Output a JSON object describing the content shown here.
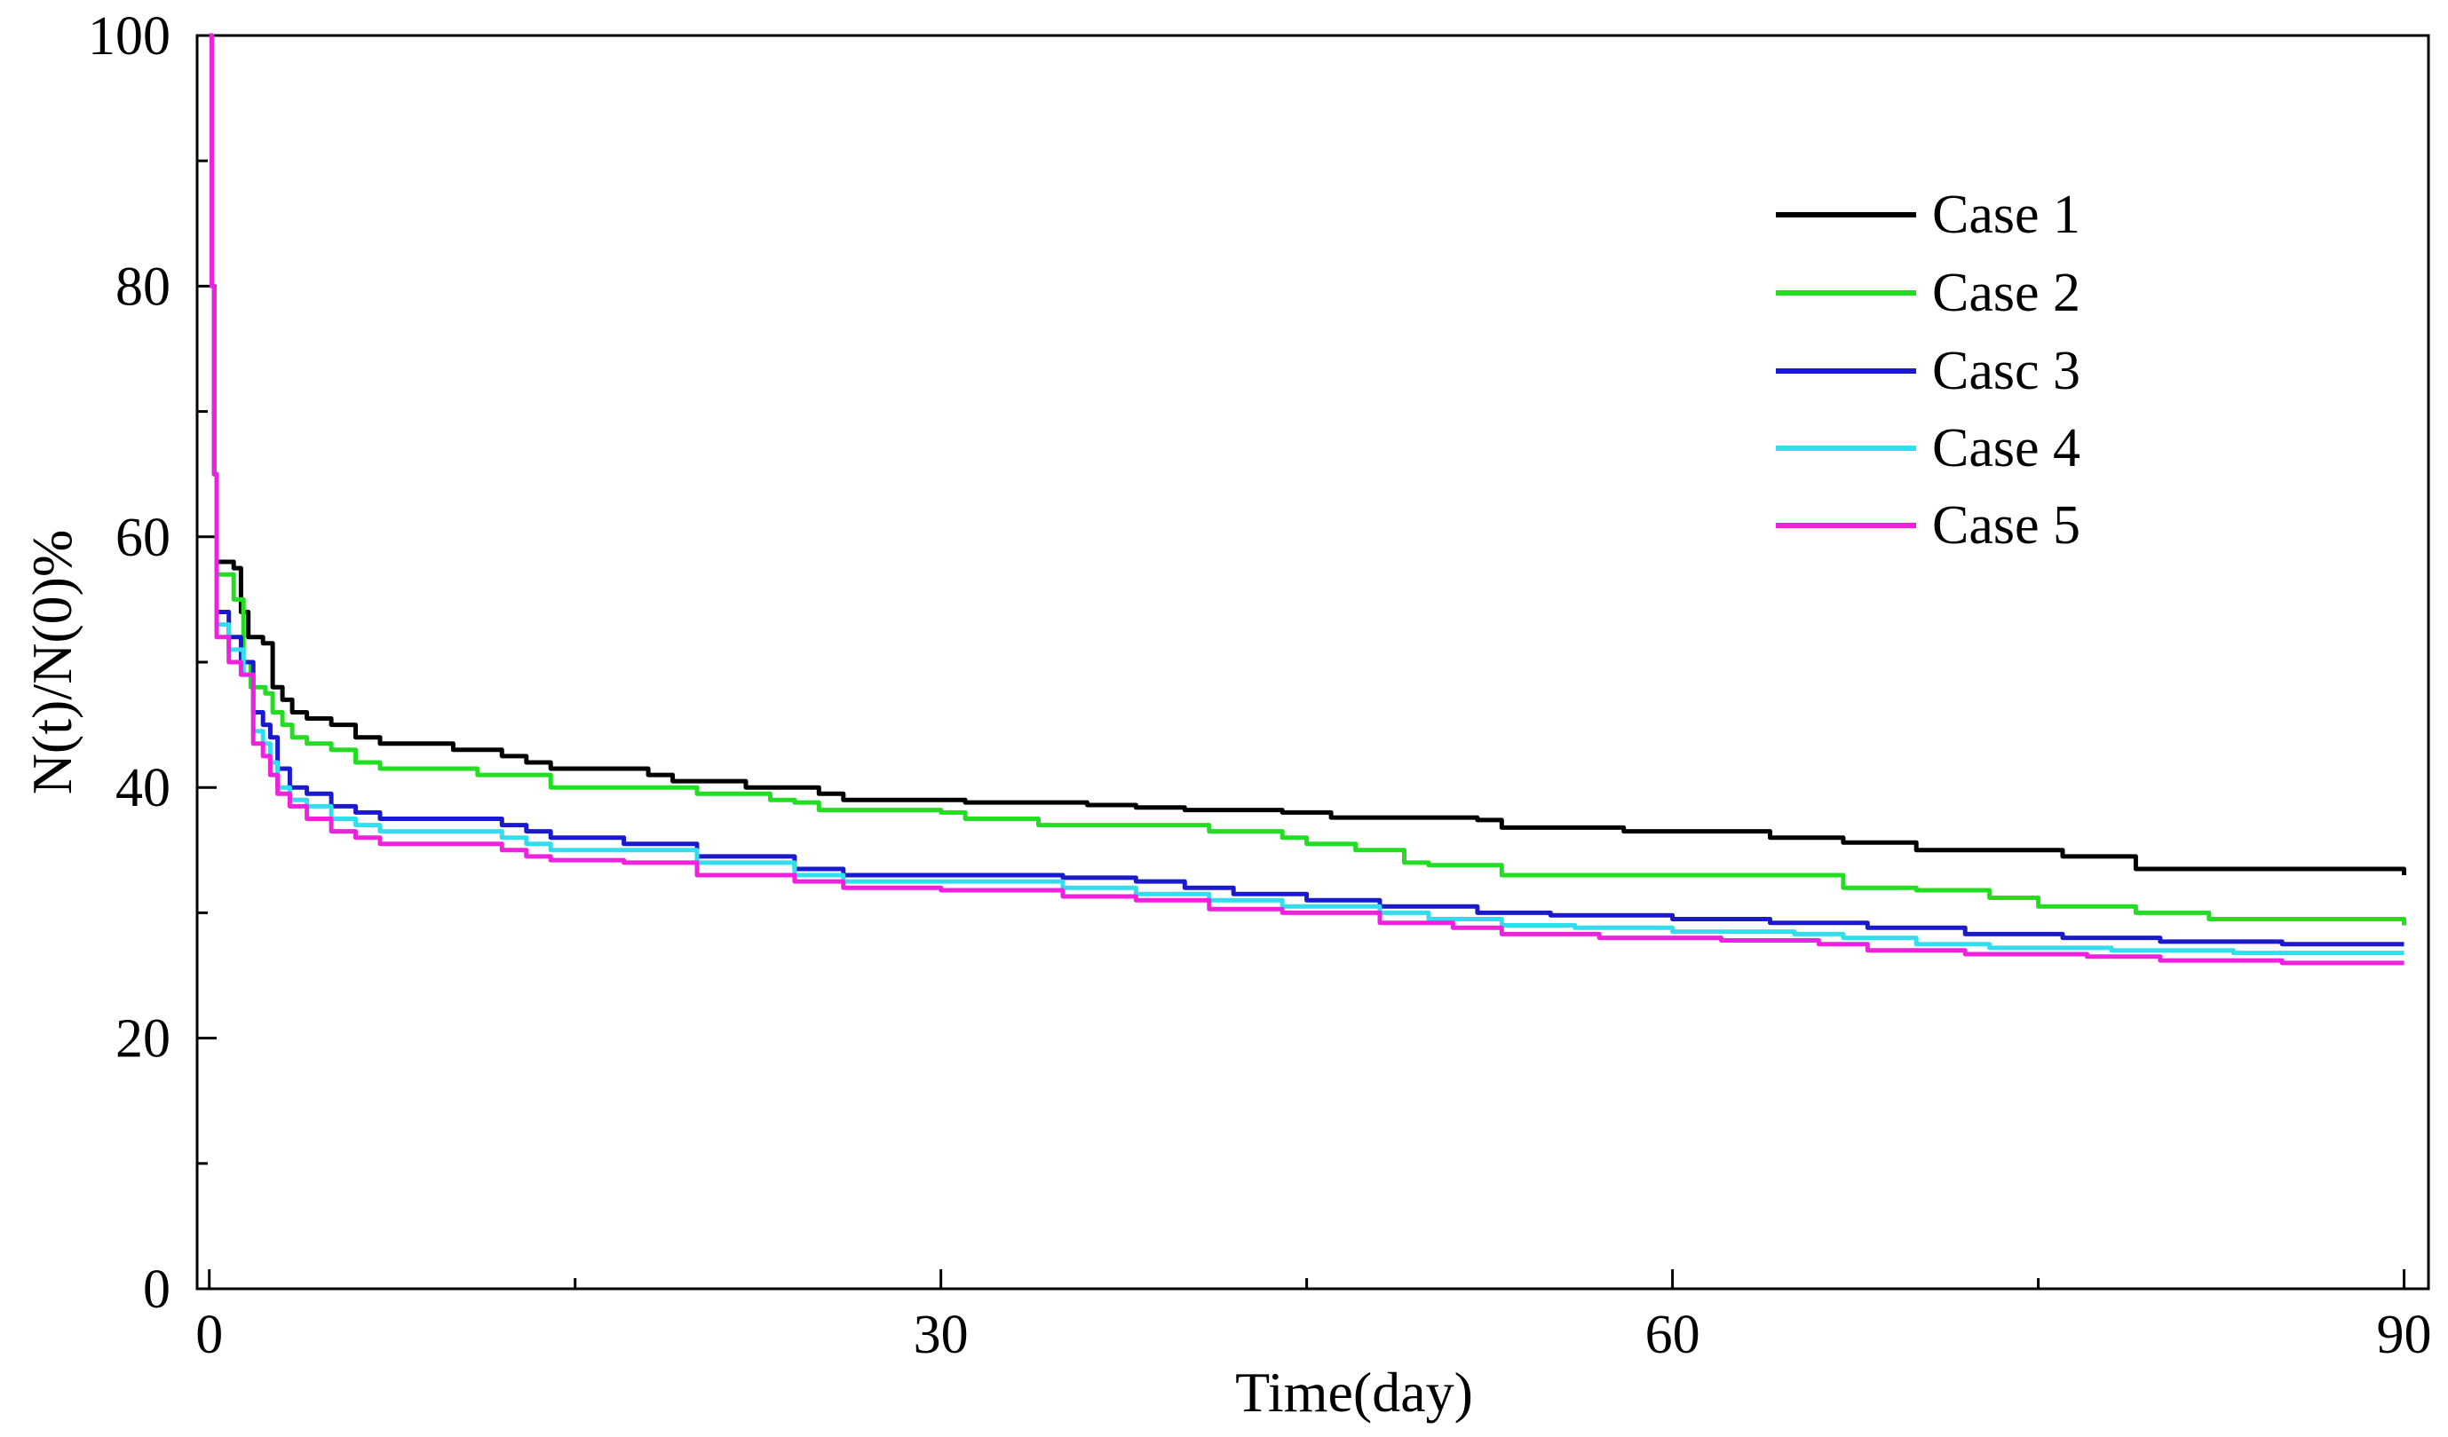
{
  "chart_data": {
    "type": "line",
    "title": "",
    "xlabel": "Time(day)",
    "ylabel": "N(t)/N(0)%",
    "xlim": [
      -0.5,
      91
    ],
    "ylim": [
      0,
      100
    ],
    "xticks": [
      0,
      30,
      60,
      90
    ],
    "xtick_labels": [
      "0",
      "30",
      "60",
      "90"
    ],
    "xminor": [
      15,
      45,
      75
    ],
    "yticks": [
      0,
      20,
      40,
      60,
      80,
      100
    ],
    "ytick_labels": [
      "0",
      "20",
      "40",
      "60",
      "80",
      "100"
    ],
    "yminor": [
      10,
      30,
      50,
      70,
      90
    ],
    "grid": false,
    "legend_position": "top-right",
    "series": [
      {
        "name": "Case 1",
        "color": "#000000",
        "points": [
          [
            0,
            100
          ],
          [
            0.1,
            80
          ],
          [
            0.2,
            65
          ],
          [
            0.3,
            58
          ],
          [
            1,
            57.5
          ],
          [
            1.3,
            54
          ],
          [
            1.6,
            52
          ],
          [
            2.2,
            51.5
          ],
          [
            2.6,
            48
          ],
          [
            3,
            47
          ],
          [
            3.4,
            46
          ],
          [
            4,
            45.5
          ],
          [
            5,
            45
          ],
          [
            6,
            44
          ],
          [
            7,
            43.5
          ],
          [
            8,
            43.5
          ],
          [
            10,
            43
          ],
          [
            12,
            42.5
          ],
          [
            13,
            42
          ],
          [
            14,
            41.5
          ],
          [
            17,
            41.5
          ],
          [
            18,
            41
          ],
          [
            19,
            40.5
          ],
          [
            20,
            40.5
          ],
          [
            22,
            40
          ],
          [
            24,
            40
          ],
          [
            25,
            39.5
          ],
          [
            26,
            39
          ],
          [
            30,
            39
          ],
          [
            31,
            38.8
          ],
          [
            36,
            38.6
          ],
          [
            38,
            38.4
          ],
          [
            40,
            38.2
          ],
          [
            44,
            38
          ],
          [
            46,
            37.6
          ],
          [
            52,
            37.4
          ],
          [
            53,
            36.8
          ],
          [
            58,
            36.5
          ],
          [
            64,
            36
          ],
          [
            67,
            35.6
          ],
          [
            70,
            35
          ],
          [
            76,
            34.5
          ],
          [
            79,
            33.5
          ],
          [
            90,
            33
          ]
        ]
      },
      {
        "name": "Case 2",
        "color": "#22dd22",
        "points": [
          [
            0,
            100
          ],
          [
            0.1,
            80
          ],
          [
            0.2,
            65
          ],
          [
            0.3,
            57
          ],
          [
            1,
            55
          ],
          [
            1.4,
            50
          ],
          [
            1.7,
            48
          ],
          [
            2.3,
            47.5
          ],
          [
            2.6,
            46
          ],
          [
            3,
            45
          ],
          [
            3.4,
            44
          ],
          [
            4,
            43.5
          ],
          [
            5,
            43
          ],
          [
            6,
            42
          ],
          [
            7,
            41.5
          ],
          [
            10,
            41.5
          ],
          [
            11,
            41
          ],
          [
            13,
            41
          ],
          [
            14,
            40
          ],
          [
            18,
            40
          ],
          [
            20,
            39.5
          ],
          [
            23,
            39
          ],
          [
            24,
            38.8
          ],
          [
            25,
            38.2
          ],
          [
            30,
            38
          ],
          [
            31,
            37.5
          ],
          [
            34,
            37
          ],
          [
            40,
            37
          ],
          [
            41,
            36.5
          ],
          [
            44,
            36
          ],
          [
            45,
            35.5
          ],
          [
            47,
            35
          ],
          [
            49,
            34
          ],
          [
            50,
            33.8
          ],
          [
            53,
            33
          ],
          [
            63,
            33
          ],
          [
            66,
            33
          ],
          [
            67,
            32
          ],
          [
            70,
            31.8
          ],
          [
            73,
            31.2
          ],
          [
            75,
            30.5
          ],
          [
            79,
            30
          ],
          [
            82,
            29.5
          ],
          [
            90,
            29
          ]
        ]
      },
      {
        "name": "Casc 3",
        "color": "#1a1acc",
        "points": [
          [
            0,
            100
          ],
          [
            0.1,
            80
          ],
          [
            0.2,
            65
          ],
          [
            0.3,
            54
          ],
          [
            0.8,
            52
          ],
          [
            1.3,
            50
          ],
          [
            1.8,
            46
          ],
          [
            2.2,
            45
          ],
          [
            2.5,
            44
          ],
          [
            2.8,
            41.5
          ],
          [
            3.3,
            40
          ],
          [
            4,
            39.5
          ],
          [
            5,
            38.5
          ],
          [
            6,
            38
          ],
          [
            7,
            37.5
          ],
          [
            10,
            37.5
          ],
          [
            12,
            37
          ],
          [
            13,
            36.5
          ],
          [
            14,
            36
          ],
          [
            17,
            35.5
          ],
          [
            20,
            34.5
          ],
          [
            24,
            33.5
          ],
          [
            26,
            33
          ],
          [
            30,
            33
          ],
          [
            35,
            32.8
          ],
          [
            38,
            32.5
          ],
          [
            40,
            32
          ],
          [
            42,
            31.5
          ],
          [
            45,
            31
          ],
          [
            48,
            30.5
          ],
          [
            52,
            30
          ],
          [
            55,
            29.8
          ],
          [
            60,
            29.5
          ],
          [
            64,
            29.2
          ],
          [
            68,
            28.8
          ],
          [
            72,
            28.3
          ],
          [
            76,
            28
          ],
          [
            80,
            27.7
          ],
          [
            85,
            27.5
          ],
          [
            90,
            27.5
          ]
        ]
      },
      {
        "name": "Case 4",
        "color": "#33ddee",
        "points": [
          [
            0,
            100
          ],
          [
            0.1,
            80
          ],
          [
            0.2,
            65
          ],
          [
            0.3,
            53
          ],
          [
            0.8,
            51
          ],
          [
            1.4,
            49
          ],
          [
            1.8,
            44.5
          ],
          [
            2.2,
            43.5
          ],
          [
            2.5,
            42
          ],
          [
            2.8,
            40
          ],
          [
            3.3,
            39
          ],
          [
            4,
            38.5
          ],
          [
            5,
            37.5
          ],
          [
            6,
            37
          ],
          [
            7,
            36.5
          ],
          [
            10,
            36.5
          ],
          [
            12,
            36
          ],
          [
            13,
            35.5
          ],
          [
            14,
            35
          ],
          [
            17,
            35
          ],
          [
            20,
            34
          ],
          [
            24,
            33
          ],
          [
            26,
            32.5
          ],
          [
            30,
            32.5
          ],
          [
            35,
            32
          ],
          [
            38,
            31.5
          ],
          [
            41,
            31
          ],
          [
            44,
            30.5
          ],
          [
            48,
            30
          ],
          [
            50,
            29.5
          ],
          [
            53,
            29
          ],
          [
            56,
            28.8
          ],
          [
            60,
            28.5
          ],
          [
            65,
            28.3
          ],
          [
            67,
            28
          ],
          [
            70,
            27.5
          ],
          [
            73,
            27.2
          ],
          [
            78,
            27
          ],
          [
            83,
            26.8
          ],
          [
            90,
            26.8
          ]
        ]
      },
      {
        "name": "Case 5",
        "color": "#ee22dd",
        "points": [
          [
            0,
            100
          ],
          [
            0.1,
            80
          ],
          [
            0.2,
            65
          ],
          [
            0.3,
            52
          ],
          [
            0.8,
            50
          ],
          [
            1.3,
            49
          ],
          [
            1.8,
            43.5
          ],
          [
            2.2,
            42.5
          ],
          [
            2.5,
            41
          ],
          [
            2.8,
            39.5
          ],
          [
            3.3,
            38.5
          ],
          [
            4,
            37.5
          ],
          [
            5,
            36.5
          ],
          [
            6,
            36
          ],
          [
            7,
            35.5
          ],
          [
            10,
            35.5
          ],
          [
            12,
            35
          ],
          [
            13,
            34.5
          ],
          [
            14,
            34.2
          ],
          [
            17,
            34
          ],
          [
            20,
            33
          ],
          [
            24,
            32.5
          ],
          [
            26,
            32
          ],
          [
            30,
            31.8
          ],
          [
            35,
            31.3
          ],
          [
            38,
            31
          ],
          [
            41,
            30.3
          ],
          [
            44,
            30
          ],
          [
            48,
            29.2
          ],
          [
            51,
            28.8
          ],
          [
            53,
            28.3
          ],
          [
            57,
            28
          ],
          [
            62,
            27.8
          ],
          [
            66,
            27.5
          ],
          [
            68,
            27
          ],
          [
            72,
            26.7
          ],
          [
            77,
            26.5
          ],
          [
            80,
            26.2
          ],
          [
            85,
            26
          ],
          [
            90,
            26
          ]
        ]
      }
    ]
  }
}
